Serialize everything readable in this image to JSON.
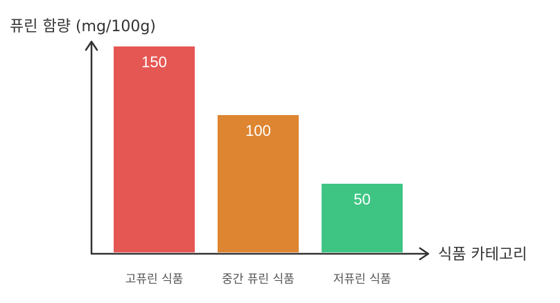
{
  "chart_data": {
    "type": "bar",
    "ylabel": "퓨린 함량 (mg/100g)",
    "xlabel": "식품 카테고리",
    "categories": [
      "고퓨린 식품",
      "중간 퓨린 식품",
      "저퓨린 식품"
    ],
    "values": [
      150,
      100,
      50
    ],
    "data_labels": [
      "150",
      "100",
      "50"
    ],
    "colors": [
      "#e55753",
      "#de8531",
      "#3ec584"
    ],
    "ylim": [
      0,
      150
    ],
    "grid": false,
    "legend": "none"
  }
}
